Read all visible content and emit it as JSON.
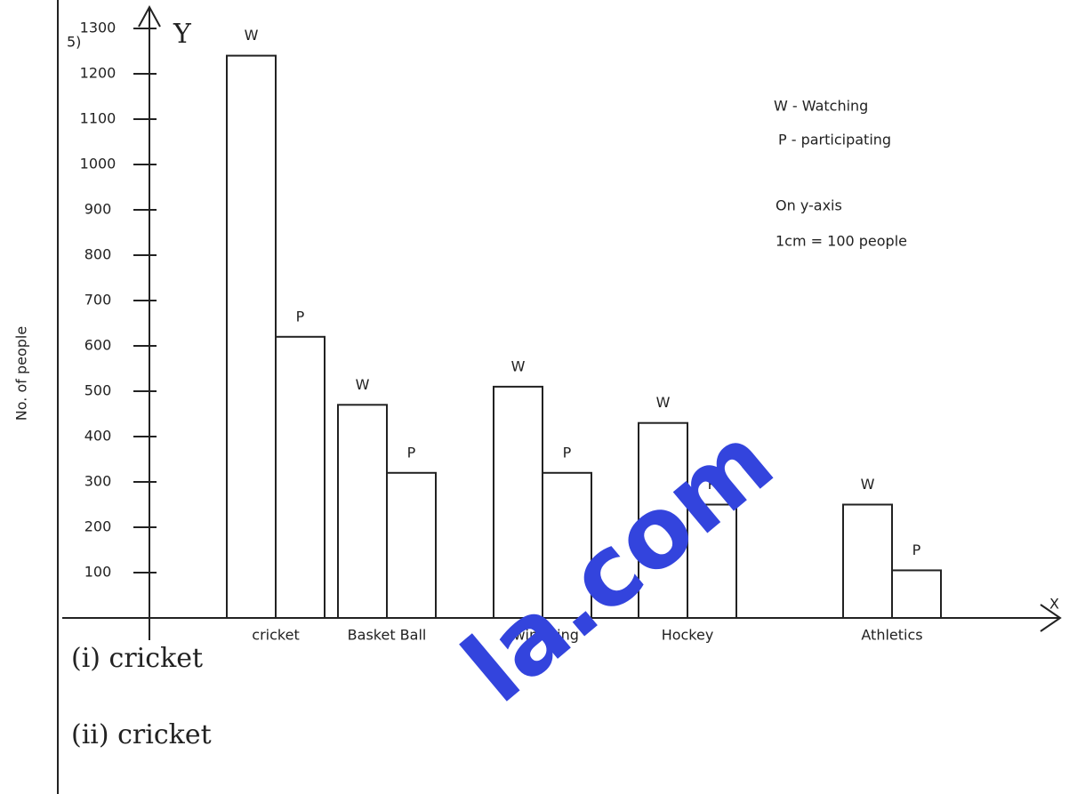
{
  "question_number": "5)",
  "chart_data": {
    "type": "bar",
    "categories": [
      "cricket",
      "Basket Ball",
      "swimming",
      "Hockey",
      "Athletics"
    ],
    "series": [
      {
        "name": "W",
        "color": "#ffffff",
        "values": [
          1240,
          470,
          510,
          430,
          250
        ]
      },
      {
        "name": "P",
        "color": "#ffffff",
        "values": [
          620,
          320,
          320,
          250,
          105
        ]
      }
    ],
    "ylim": [
      0,
      1300
    ],
    "yticks": [
      100,
      200,
      300,
      400,
      500,
      600,
      700,
      800,
      900,
      1000,
      1100,
      1200,
      1300
    ],
    "y_label": "No. of people",
    "x_axis_name": "X",
    "y_axis_name": "Y",
    "legend": [
      "W - Watching",
      "P - participating",
      "On y-axis",
      "1cm = 100 people"
    ]
  },
  "answers": [
    "(i) cricket",
    "(ii) cricket"
  ],
  "watermark": "la.com"
}
